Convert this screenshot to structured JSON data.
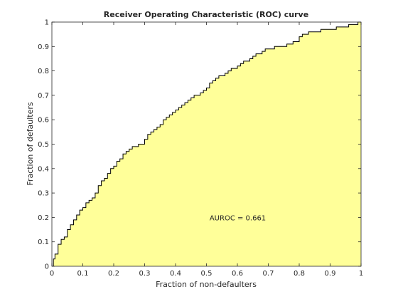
{
  "chart_data": {
    "type": "area",
    "title": "Receiver Operating Characteristic (ROC) curve",
    "xlabel": "Fraction of non-defaulters",
    "ylabel": "Fraction of defaulters",
    "xlim": [
      0,
      1
    ],
    "ylim": [
      0,
      1
    ],
    "xticks": [
      "0",
      "0.1",
      "0.2",
      "0.3",
      "0.4",
      "0.5",
      "0.6",
      "0.7",
      "0.8",
      "0.9",
      "1"
    ],
    "yticks": [
      "0",
      "0.1",
      "0.2",
      "0.3",
      "0.4",
      "0.5",
      "0.6",
      "0.7",
      "0.8",
      "0.9",
      "1"
    ],
    "grid": false,
    "fill_color": "#ffff99",
    "line_color": "#000000",
    "annotation": {
      "text": "AUROC = 0.661",
      "x": 0.51,
      "y": 0.2
    },
    "x": [
      0,
      0.005,
      0.01,
      0.02,
      0.03,
      0.04,
      0.05,
      0.06,
      0.07,
      0.08,
      0.09,
      0.1,
      0.11,
      0.12,
      0.13,
      0.14,
      0.15,
      0.16,
      0.17,
      0.18,
      0.19,
      0.2,
      0.21,
      0.22,
      0.23,
      0.24,
      0.25,
      0.26,
      0.28,
      0.3,
      0.31,
      0.32,
      0.33,
      0.34,
      0.35,
      0.36,
      0.37,
      0.38,
      0.39,
      0.4,
      0.41,
      0.42,
      0.43,
      0.44,
      0.45,
      0.46,
      0.47,
      0.48,
      0.49,
      0.5,
      0.51,
      0.52,
      0.53,
      0.54,
      0.55,
      0.56,
      0.57,
      0.58,
      0.6,
      0.61,
      0.62,
      0.63,
      0.64,
      0.65,
      0.66,
      0.67,
      0.68,
      0.69,
      0.7,
      0.72,
      0.74,
      0.76,
      0.78,
      0.8,
      0.81,
      0.82,
      0.83,
      0.84,
      0.85,
      0.86,
      0.87,
      0.88,
      0.9,
      0.92,
      0.94,
      0.95,
      0.96,
      0.97,
      0.98,
      0.99,
      1.0
    ],
    "y": [
      0,
      0.03,
      0.05,
      0.09,
      0.11,
      0.12,
      0.15,
      0.17,
      0.19,
      0.21,
      0.23,
      0.24,
      0.26,
      0.27,
      0.28,
      0.3,
      0.33,
      0.35,
      0.36,
      0.38,
      0.4,
      0.41,
      0.43,
      0.44,
      0.46,
      0.47,
      0.48,
      0.49,
      0.5,
      0.52,
      0.54,
      0.55,
      0.56,
      0.57,
      0.58,
      0.6,
      0.61,
      0.62,
      0.63,
      0.64,
      0.65,
      0.66,
      0.67,
      0.68,
      0.69,
      0.7,
      0.7,
      0.71,
      0.72,
      0.73,
      0.75,
      0.76,
      0.77,
      0.78,
      0.78,
      0.79,
      0.8,
      0.81,
      0.82,
      0.83,
      0.84,
      0.84,
      0.85,
      0.86,
      0.87,
      0.87,
      0.88,
      0.89,
      0.89,
      0.9,
      0.9,
      0.91,
      0.92,
      0.94,
      0.95,
      0.95,
      0.96,
      0.96,
      0.96,
      0.96,
      0.97,
      0.97,
      0.97,
      0.98,
      0.98,
      0.98,
      0.99,
      0.99,
      0.99,
      1.0,
      1.0
    ]
  }
}
